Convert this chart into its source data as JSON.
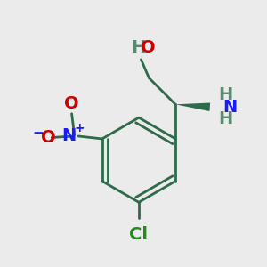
{
  "bg_color": "#ebebeb",
  "bond_color": "#2d6b4a",
  "bond_width": 2.0,
  "atom_colors": {
    "C": "#2d6b4a",
    "H": "#5a8870",
    "O": "#cc0000",
    "N_blue": "#1a1aff",
    "Cl": "#228b22"
  },
  "font_size_main": 14,
  "font_size_sub": 10,
  "font_size_superscript": 9
}
